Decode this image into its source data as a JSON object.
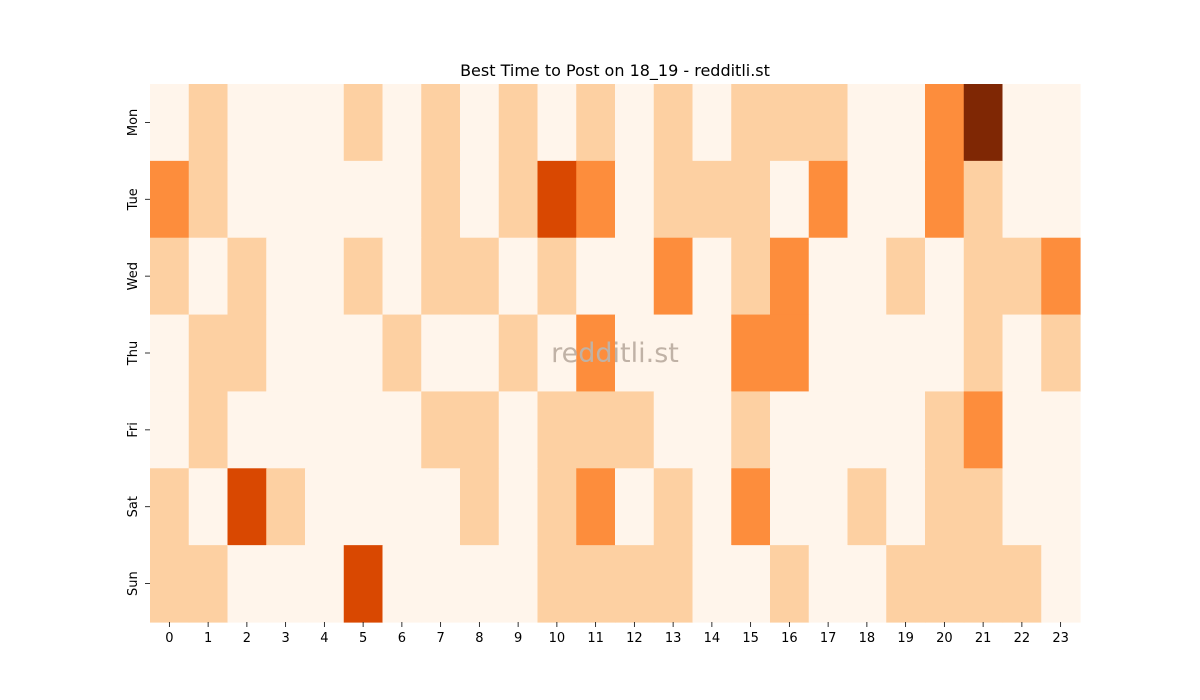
{
  "chart_data": {
    "type": "heatmap",
    "title": "Best Time to Post on 18_19 - redditli.st",
    "xlabel": "",
    "ylabel": "",
    "x_categories": [
      "0",
      "1",
      "2",
      "3",
      "4",
      "5",
      "6",
      "7",
      "8",
      "9",
      "10",
      "11",
      "12",
      "13",
      "14",
      "15",
      "16",
      "17",
      "18",
      "19",
      "20",
      "21",
      "22",
      "23"
    ],
    "y_categories": [
      "Mon",
      "Tue",
      "Wed",
      "Thu",
      "Fri",
      "Sat",
      "Sun"
    ],
    "values": [
      [
        0,
        1,
        0,
        0,
        0,
        1,
        0,
        1,
        0,
        1,
        0,
        1,
        0,
        1,
        0,
        1,
        1,
        1,
        0,
        0,
        2,
        4,
        0,
        0
      ],
      [
        2,
        1,
        0,
        0,
        0,
        0,
        0,
        1,
        0,
        1,
        3,
        2,
        0,
        1,
        1,
        1,
        0,
        2,
        0,
        0,
        2,
        1,
        0,
        0
      ],
      [
        1,
        0,
        1,
        0,
        0,
        1,
        0,
        1,
        1,
        0,
        1,
        0,
        0,
        2,
        0,
        1,
        2,
        0,
        0,
        1,
        0,
        1,
        1,
        2
      ],
      [
        0,
        1,
        1,
        0,
        0,
        0,
        1,
        0,
        0,
        1,
        0,
        2,
        0,
        0,
        0,
        2,
        2,
        0,
        0,
        0,
        0,
        1,
        0,
        1
      ],
      [
        0,
        1,
        0,
        0,
        0,
        0,
        0,
        1,
        1,
        0,
        1,
        1,
        1,
        0,
        0,
        1,
        0,
        0,
        0,
        0,
        1,
        2,
        0,
        0
      ],
      [
        1,
        0,
        3,
        1,
        0,
        0,
        0,
        0,
        1,
        0,
        1,
        2,
        0,
        1,
        0,
        2,
        0,
        0,
        1,
        0,
        1,
        1,
        0,
        0
      ],
      [
        1,
        1,
        0,
        0,
        0,
        3,
        0,
        0,
        0,
        0,
        1,
        1,
        1,
        1,
        0,
        0,
        1,
        0,
        0,
        1,
        1,
        1,
        1,
        0
      ]
    ],
    "color_levels": [
      "#fff5eb",
      "#fdd0a2",
      "#fd8d3c",
      "#d94801",
      "#7f2704"
    ],
    "colormap": "Oranges",
    "grid": false,
    "legend": "none",
    "watermark": "redditli.st"
  }
}
